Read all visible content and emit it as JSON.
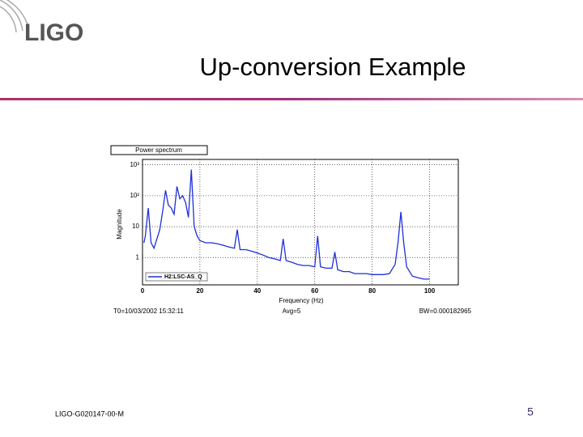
{
  "header": {
    "logo": "LIGO",
    "title": "Up-conversion Example"
  },
  "chart_data": {
    "type": "line",
    "panel_title": "Power spectrum",
    "y_label": "Magnitude",
    "x_label": "Frequency (Hz)",
    "info": {
      "start_time": "T0=10/03/2002 15:32:11",
      "averages": "Avg=5",
      "bandwidth": "BW=0.000182965"
    },
    "x": [
      0.5,
      1,
      2,
      3,
      4,
      6,
      7,
      8,
      9,
      10,
      11,
      12,
      13,
      14,
      15,
      16,
      17,
      18,
      19,
      20,
      22,
      24,
      26,
      28,
      30,
      32,
      33,
      34,
      36,
      38,
      40,
      42,
      44,
      46,
      48,
      49,
      50,
      52,
      54,
      56,
      58,
      60,
      61,
      62,
      64,
      66,
      67,
      68,
      70,
      72,
      74,
      76,
      78,
      80,
      82,
      84,
      86,
      88,
      89,
      90,
      91,
      92,
      94,
      96,
      98,
      100
    ],
    "series": [
      {
        "name": "H2:LSC-AS_Q",
        "color": "#1f2fd8",
        "values": [
          3,
          5,
          40,
          3,
          2,
          8,
          30,
          150,
          50,
          40,
          25,
          200,
          80,
          100,
          60,
          20,
          700,
          10,
          5,
          3.5,
          3,
          3,
          2.8,
          2.5,
          2.2,
          2,
          8,
          1.8,
          1.8,
          1.6,
          1.4,
          1.2,
          1,
          0.9,
          0.8,
          4,
          0.8,
          0.7,
          0.6,
          0.55,
          0.55,
          0.5,
          5,
          0.5,
          0.45,
          0.45,
          1.5,
          0.4,
          0.35,
          0.35,
          0.3,
          0.3,
          0.3,
          0.28,
          0.28,
          0.28,
          0.3,
          0.6,
          3,
          30,
          3,
          0.5,
          0.25,
          0.22,
          0.2,
          0.2
        ]
      }
    ],
    "xlim": [
      0,
      110
    ],
    "xticks": [
      0,
      20,
      40,
      60,
      80,
      100
    ],
    "ylim": [
      0.13,
      1500
    ],
    "yticks": [
      1,
      10,
      {
        "value": 100,
        "label": "10²"
      },
      {
        "value": 1000,
        "label": "10³"
      }
    ],
    "log_y": true,
    "grid": true,
    "legend": "bottom-left"
  },
  "footer": {
    "document_id": "LIGO-G020147-00-M",
    "page_number": "5"
  }
}
